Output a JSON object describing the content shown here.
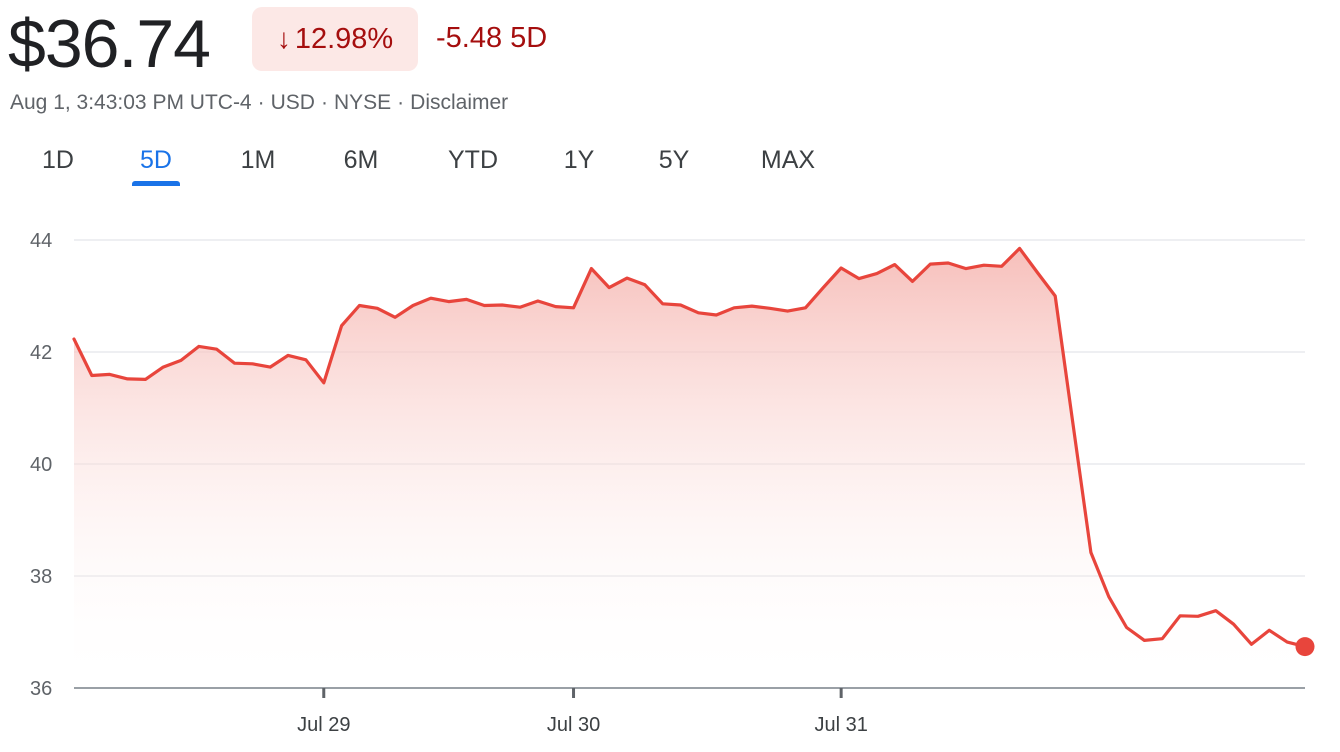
{
  "quote": {
    "price": "$36.74",
    "change_pct": "12.98%",
    "change_abs": "-5.48 5D",
    "timestamp": "Aug 1, 3:43:03 PM UTC-4",
    "currency": "USD",
    "exchange": "NYSE",
    "disclaimer": "Disclaimer"
  },
  "tabs": [
    {
      "label": "1D",
      "active": false
    },
    {
      "label": "5D",
      "active": true
    },
    {
      "label": "1M",
      "active": false
    },
    {
      "label": "6M",
      "active": false
    },
    {
      "label": "YTD",
      "active": false
    },
    {
      "label": "1Y",
      "active": false
    },
    {
      "label": "5Y",
      "active": false
    },
    {
      "label": "MAX",
      "active": false
    }
  ],
  "colors": {
    "line": "#e8453c",
    "fill": "#f6b8b3",
    "negative_text": "#a50e0e",
    "badge_bg": "#fce8e6",
    "active_tab": "#1a73e8"
  },
  "chart_data": {
    "type": "area",
    "y_ticks": [
      "44",
      "42",
      "40",
      "38",
      "36"
    ],
    "x_tick_labels": [
      "Jul 29",
      "Jul 30",
      "Jul 31"
    ],
    "ylim": [
      36,
      44
    ],
    "grid": true,
    "series": [
      {
        "values": [
          42.23,
          41.58,
          41.6,
          41.52,
          41.51,
          41.73,
          41.85,
          42.1,
          42.05,
          41.8,
          41.79,
          41.73,
          41.94,
          41.86,
          41.45,
          42.47,
          42.83,
          42.78,
          42.62,
          42.83,
          42.96,
          42.9,
          42.94,
          42.83,
          42.84,
          42.8,
          42.91,
          42.81,
          42.79,
          43.49,
          43.15,
          43.32,
          43.2,
          42.86,
          42.84,
          42.7,
          42.66,
          42.79,
          42.82,
          42.78,
          42.73,
          42.79,
          43.15,
          43.5,
          43.31,
          43.4,
          43.56,
          43.26,
          43.57,
          43.59,
          43.49,
          43.55,
          43.53,
          43.85,
          43.42,
          43.0,
          40.7,
          38.42,
          37.63,
          37.08,
          36.85,
          36.88,
          37.29,
          37.28,
          37.38,
          37.14,
          36.78,
          37.03,
          36.82,
          36.74
        ]
      }
    ]
  }
}
